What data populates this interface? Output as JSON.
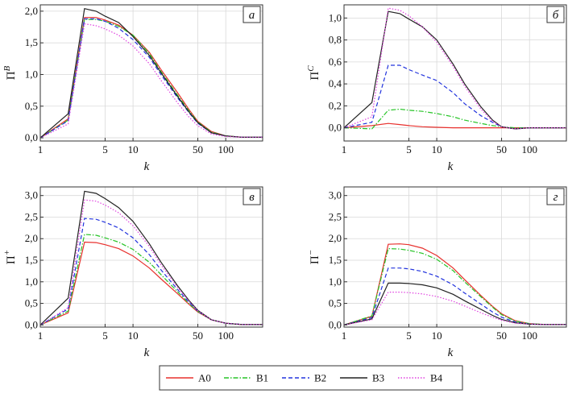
{
  "chart_data": [
    {
      "type": "line",
      "panel_letter": "а",
      "ylabel_main": "Π",
      "ylabel_sup": "B",
      "xlabel": "k",
      "xscale": "log",
      "xlim": [
        1,
        250
      ],
      "ylim": [
        -0.05,
        2.1
      ],
      "xticks": [
        1,
        5,
        10,
        50,
        100
      ],
      "xtick_labels": [
        "1",
        "5",
        "10",
        "50",
        "100"
      ],
      "yticks": [
        0,
        0.5,
        1.0,
        1.5,
        2.0
      ],
      "ytick_labels": [
        "0,0",
        "0,5",
        "1,0",
        "1,5",
        "2,0"
      ],
      "grid": true,
      "x": [
        1,
        2,
        3,
        4,
        5,
        7,
        10,
        15,
        20,
        30,
        40,
        50,
        70,
        100,
        150,
        250
      ],
      "series": [
        {
          "name": "A0",
          "values": [
            0,
            0.3,
            1.9,
            1.9,
            1.86,
            1.78,
            1.62,
            1.35,
            1.08,
            0.72,
            0.45,
            0.26,
            0.1,
            0.03,
            0.01,
            0.01
          ]
        },
        {
          "name": "B1",
          "values": [
            0,
            0.28,
            1.87,
            1.87,
            1.84,
            1.76,
            1.62,
            1.33,
            1.05,
            0.68,
            0.43,
            0.25,
            0.09,
            0.03,
            0.01,
            0.01
          ]
        },
        {
          "name": "B2",
          "values": [
            0,
            0.27,
            1.88,
            1.88,
            1.84,
            1.73,
            1.55,
            1.27,
            1.0,
            0.64,
            0.4,
            0.23,
            0.08,
            0.03,
            0.01,
            0.01
          ]
        },
        {
          "name": "B3",
          "values": [
            0,
            0.38,
            2.04,
            2.0,
            1.92,
            1.82,
            1.6,
            1.3,
            1.03,
            0.66,
            0.41,
            0.24,
            0.08,
            0.03,
            0.01,
            0.01
          ]
        },
        {
          "name": "B4",
          "values": [
            0,
            0.22,
            1.8,
            1.77,
            1.72,
            1.62,
            1.45,
            1.17,
            0.91,
            0.56,
            0.33,
            0.19,
            0.06,
            0.02,
            0.01,
            0.01
          ]
        }
      ]
    },
    {
      "type": "line",
      "panel_letter": "б",
      "ylabel_main": "Π",
      "ylabel_sup": "C",
      "xlabel": "k",
      "xscale": "log",
      "xlim": [
        1,
        250
      ],
      "ylim": [
        -0.12,
        1.12
      ],
      "xticks": [
        1,
        5,
        10,
        50,
        100
      ],
      "xtick_labels": [
        "1",
        "5",
        "10",
        "50",
        "100"
      ],
      "yticks": [
        0,
        0.2,
        0.4,
        0.6,
        0.8,
        1.0
      ],
      "ytick_labels": [
        "0,0",
        "0,2",
        "0,4",
        "0,6",
        "0,8",
        "1,0"
      ],
      "grid": true,
      "x": [
        1,
        2,
        3,
        4,
        5,
        7,
        10,
        15,
        20,
        30,
        40,
        50,
        70,
        100,
        150,
        250
      ],
      "series": [
        {
          "name": "A0",
          "values": [
            0,
            0.02,
            0.04,
            0.03,
            0.02,
            0.01,
            0.005,
            0,
            0,
            0,
            0,
            0,
            0,
            0,
            0,
            0
          ]
        },
        {
          "name": "B1",
          "values": [
            0,
            -0.01,
            0.16,
            0.17,
            0.16,
            0.15,
            0.13,
            0.1,
            0.07,
            0.04,
            0.02,
            0.01,
            0,
            0,
            0,
            0
          ]
        },
        {
          "name": "B2",
          "values": [
            0,
            0.05,
            0.57,
            0.57,
            0.53,
            0.48,
            0.43,
            0.32,
            0.22,
            0.11,
            0.05,
            0.01,
            -0.01,
            0,
            0,
            0
          ]
        },
        {
          "name": "B3",
          "values": [
            0,
            0.23,
            1.06,
            1.04,
            0.99,
            0.92,
            0.8,
            0.58,
            0.4,
            0.19,
            0.07,
            0.01,
            -0.01,
            0,
            0,
            0
          ]
        },
        {
          "name": "B4",
          "values": [
            0,
            0.1,
            1.09,
            1.07,
            1.02,
            0.92,
            0.78,
            0.56,
            0.38,
            0.17,
            0.06,
            0.01,
            -0.01,
            0,
            0,
            0
          ]
        }
      ]
    },
    {
      "type": "line",
      "panel_letter": "в",
      "ylabel_main": "Π",
      "ylabel_sup": "+",
      "xlabel": "k",
      "xscale": "log",
      "xlim": [
        1,
        250
      ],
      "ylim": [
        -0.05,
        3.2
      ],
      "xticks": [
        1,
        5,
        10,
        50,
        100
      ],
      "xtick_labels": [
        "1",
        "5",
        "10",
        "50",
        "100"
      ],
      "yticks": [
        0,
        0.5,
        1.0,
        1.5,
        2.0,
        2.5,
        3.0
      ],
      "ytick_labels": [
        "0,0",
        "0,5",
        "1,0",
        "1,5",
        "2,0",
        "2,5",
        "3,0"
      ],
      "grid": true,
      "x": [
        1,
        2,
        3,
        4,
        5,
        7,
        10,
        15,
        20,
        30,
        40,
        50,
        70,
        100,
        150,
        250
      ],
      "series": [
        {
          "name": "A0",
          "values": [
            0,
            0.28,
            1.92,
            1.91,
            1.86,
            1.77,
            1.6,
            1.32,
            1.07,
            0.73,
            0.48,
            0.3,
            0.12,
            0.04,
            0.01,
            0.01
          ]
        },
        {
          "name": "B1",
          "values": [
            0,
            0.32,
            2.1,
            2.08,
            2.02,
            1.92,
            1.75,
            1.45,
            1.17,
            0.78,
            0.5,
            0.31,
            0.12,
            0.04,
            0.01,
            0.01
          ]
        },
        {
          "name": "B2",
          "values": [
            0,
            0.37,
            2.47,
            2.45,
            2.38,
            2.25,
            2.02,
            1.63,
            1.28,
            0.83,
            0.53,
            0.32,
            0.12,
            0.04,
            0.01,
            0.01
          ]
        },
        {
          "name": "B3",
          "values": [
            0,
            0.62,
            3.1,
            3.05,
            2.93,
            2.72,
            2.4,
            1.88,
            1.46,
            0.92,
            0.57,
            0.34,
            0.12,
            0.04,
            0.01,
            0.01
          ]
        },
        {
          "name": "B4",
          "values": [
            0,
            0.4,
            2.9,
            2.87,
            2.78,
            2.6,
            2.3,
            1.82,
            1.4,
            0.88,
            0.55,
            0.33,
            0.12,
            0.04,
            0.01,
            0.01
          ]
        }
      ]
    },
    {
      "type": "line",
      "panel_letter": "г",
      "ylabel_main": "Π",
      "ylabel_sup": "−",
      "xlabel": "k",
      "xscale": "log",
      "xlim": [
        1,
        250
      ],
      "ylim": [
        -0.05,
        3.2
      ],
      "xticks": [
        1,
        5,
        10,
        50,
        100
      ],
      "xtick_labels": [
        "1",
        "5",
        "10",
        "50",
        "100"
      ],
      "yticks": [
        0,
        0.5,
        1.0,
        1.5,
        2.0,
        2.5,
        3.0
      ],
      "ytick_labels": [
        "0,0",
        "0,5",
        "1,0",
        "1,5",
        "2,0",
        "2,5",
        "3,0"
      ],
      "grid": true,
      "x": [
        1,
        2,
        3,
        4,
        5,
        7,
        10,
        15,
        20,
        30,
        40,
        50,
        70,
        100,
        150,
        250
      ],
      "series": [
        {
          "name": "A0",
          "values": [
            0,
            0.2,
            1.87,
            1.88,
            1.86,
            1.78,
            1.61,
            1.32,
            1.05,
            0.68,
            0.43,
            0.26,
            0.1,
            0.03,
            0.01,
            0.01
          ]
        },
        {
          "name": "B1",
          "values": [
            0,
            0.21,
            1.77,
            1.76,
            1.73,
            1.66,
            1.52,
            1.26,
            1.0,
            0.65,
            0.41,
            0.24,
            0.09,
            0.03,
            0.01,
            0.01
          ]
        },
        {
          "name": "B2",
          "values": [
            0,
            0.17,
            1.32,
            1.32,
            1.3,
            1.24,
            1.13,
            0.93,
            0.74,
            0.48,
            0.3,
            0.18,
            0.07,
            0.02,
            0.01,
            0.01
          ]
        },
        {
          "name": "B3",
          "values": [
            0,
            0.14,
            0.97,
            0.97,
            0.96,
            0.93,
            0.86,
            0.71,
            0.56,
            0.36,
            0.22,
            0.13,
            0.05,
            0.02,
            0.01,
            0.01
          ]
        },
        {
          "name": "B4",
          "values": [
            0,
            0.12,
            0.76,
            0.76,
            0.75,
            0.72,
            0.66,
            0.55,
            0.44,
            0.28,
            0.18,
            0.11,
            0.04,
            0.02,
            0.01,
            0.01
          ]
        }
      ]
    }
  ],
  "legend": {
    "placement": "bottom-center",
    "items": [
      {
        "name": "A0",
        "color": "#e8302d",
        "dash": "solid"
      },
      {
        "name": "B1",
        "color": "#27c427",
        "dash": "dashdot"
      },
      {
        "name": "B2",
        "color": "#2233dd",
        "dash": "dashed"
      },
      {
        "name": "B3",
        "color": "#222222",
        "dash": "solid"
      },
      {
        "name": "B4",
        "color": "#e040e0",
        "dash": "dotted"
      }
    ]
  }
}
